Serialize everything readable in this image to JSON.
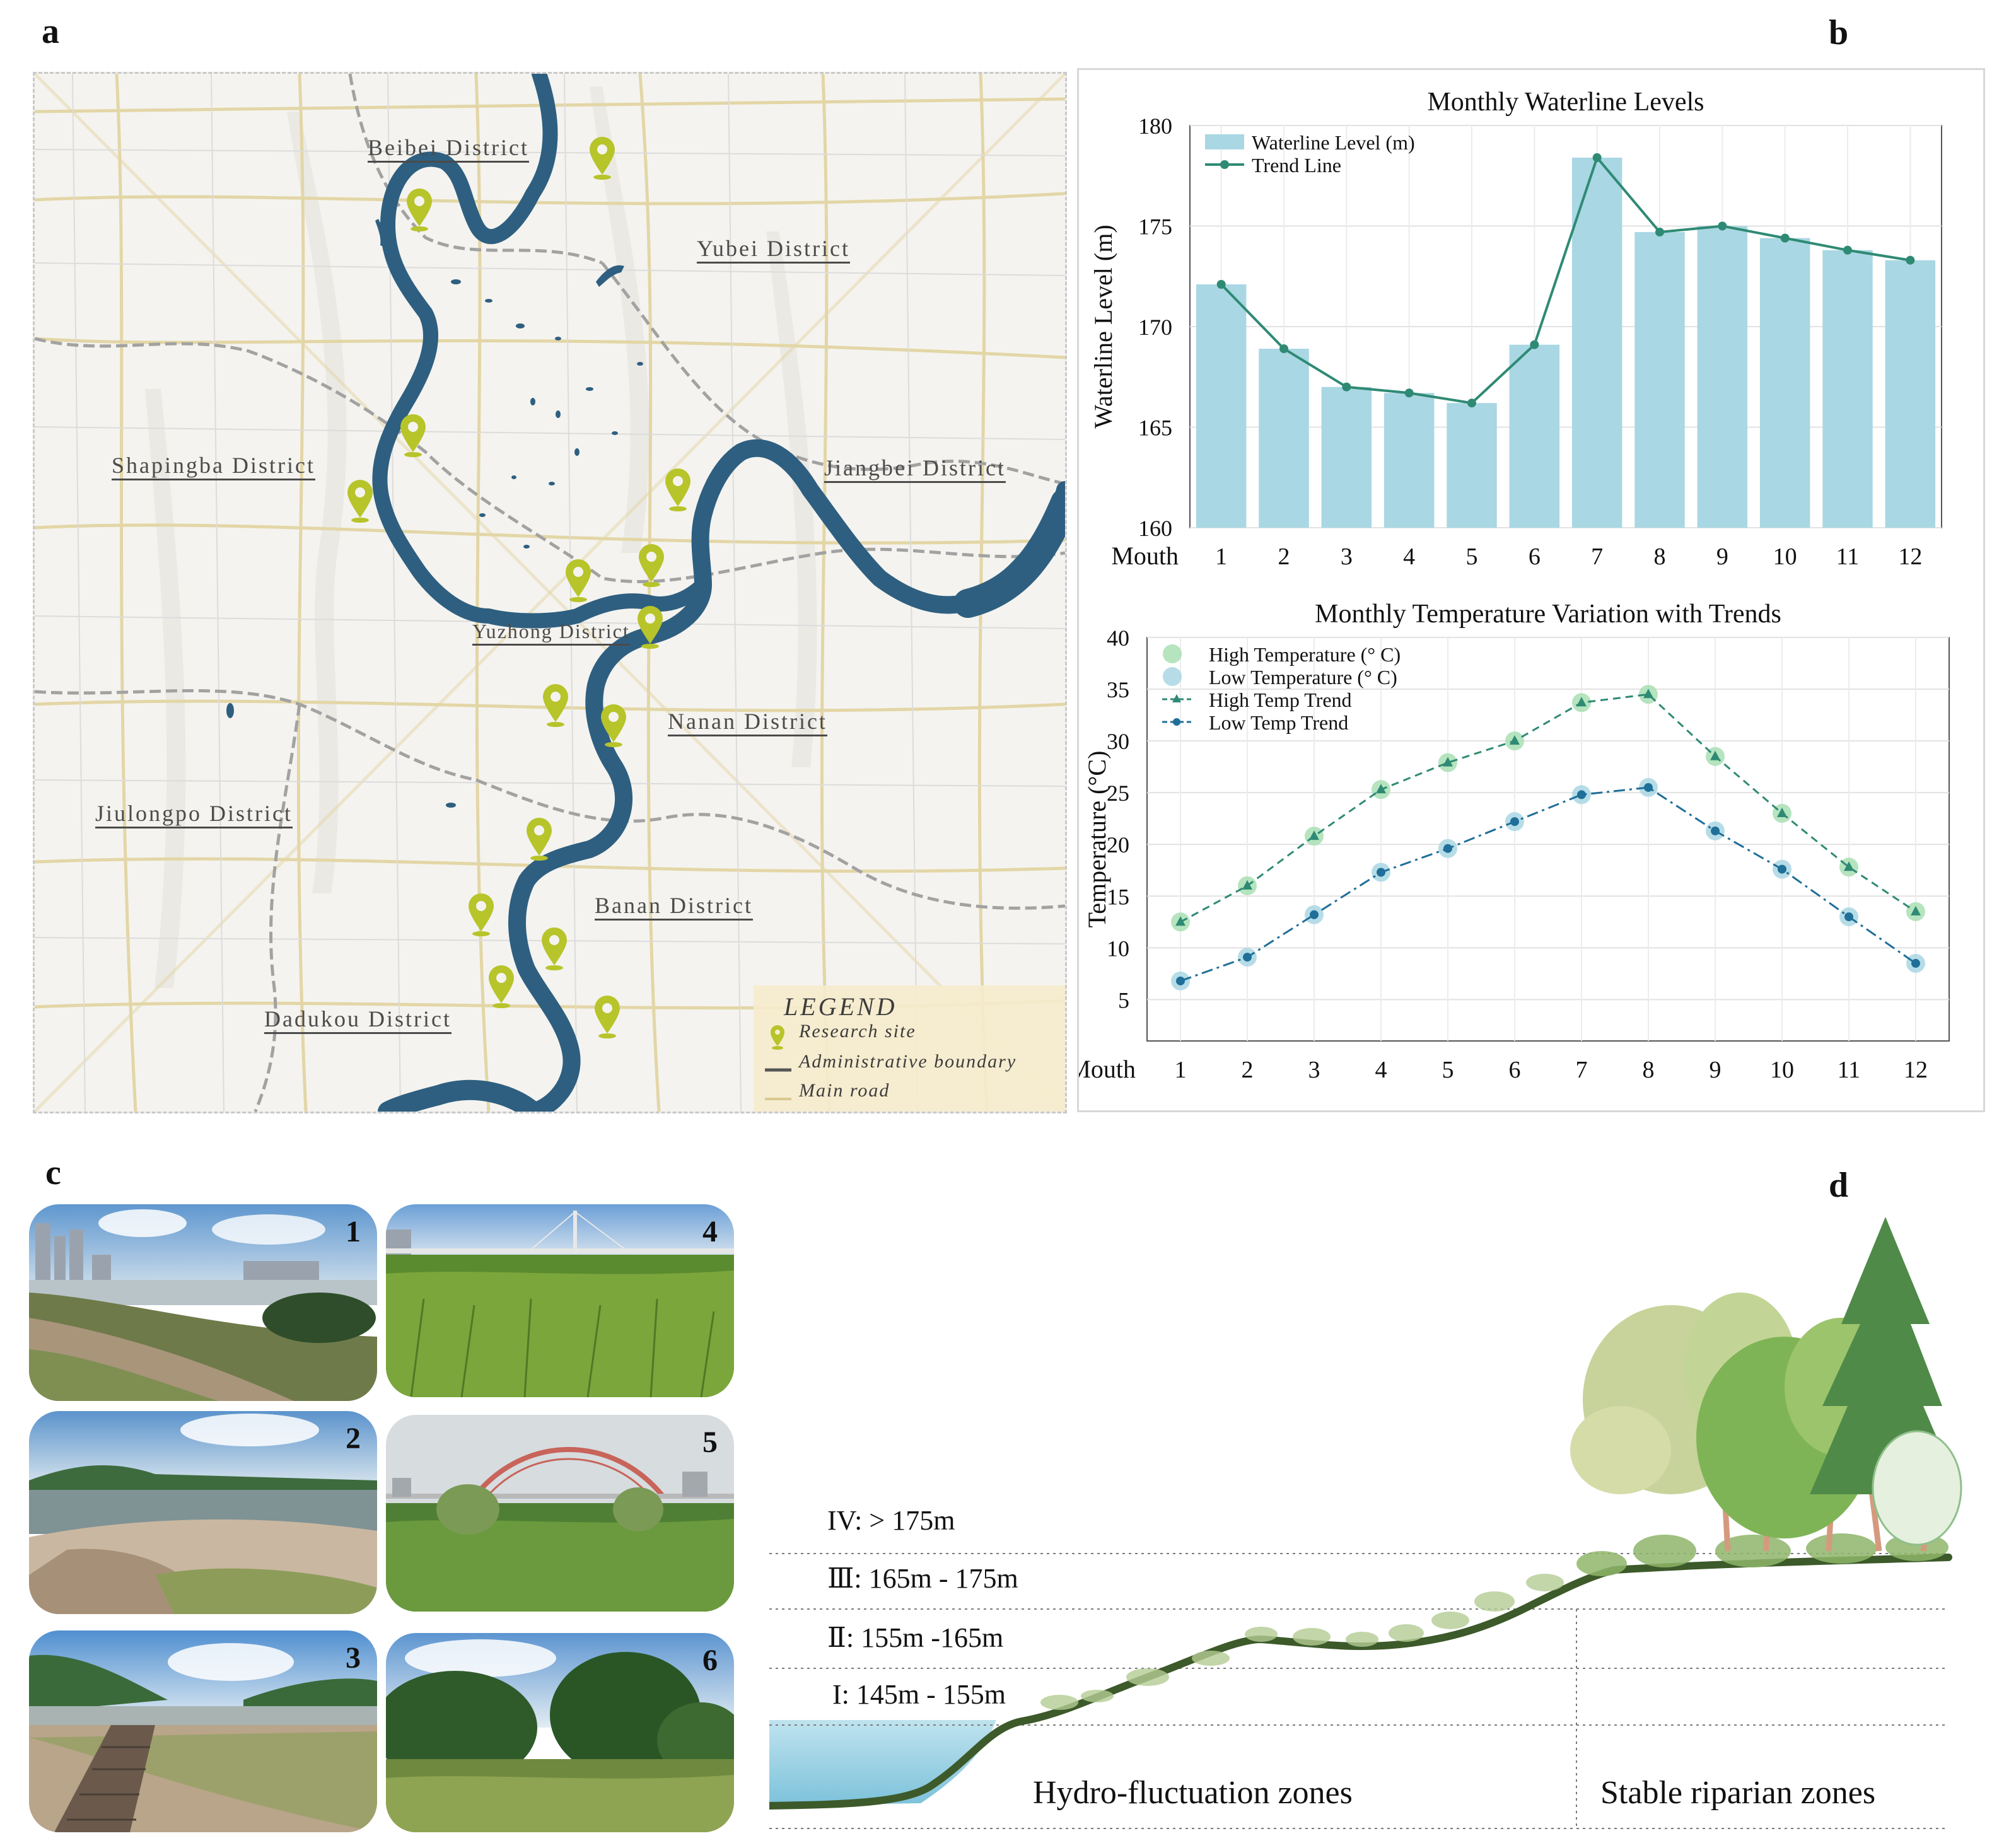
{
  "panels": {
    "a": "a",
    "b": "b",
    "c": "c",
    "d": "d"
  },
  "map": {
    "districts": [
      {
        "id": "beibei",
        "label": "Beibei District"
      },
      {
        "id": "yubei",
        "label": "Yubei District"
      },
      {
        "id": "shapingba",
        "label": "Shapingba District"
      },
      {
        "id": "jiangbei",
        "label": "Jiangbei District"
      },
      {
        "id": "yuzhong",
        "label": "Yuzhong District"
      },
      {
        "id": "nanan",
        "label": "Nanan District"
      },
      {
        "id": "jiulongpo",
        "label": "Jiulongpo District"
      },
      {
        "id": "banan",
        "label": "Banan District"
      },
      {
        "id": "dadukou",
        "label": "Dadukou District"
      }
    ],
    "legend": {
      "title": "LEGEND",
      "items": [
        "Research site",
        "Administrative boundary",
        "Main road"
      ]
    },
    "colors": {
      "river": "#2e5f80",
      "marker": "#b7c42a",
      "boundary": "#9a9a9a",
      "road": "#e6d9a8"
    }
  },
  "chart_data": [
    {
      "type": "bar",
      "title": "Monthly Waterline Levels",
      "xlabel": "Mouth",
      "ylabel": "Waterline Level  (m)",
      "categories": [
        "1",
        "2",
        "3",
        "4",
        "5",
        "6",
        "7",
        "8",
        "9",
        "10",
        "11",
        "12"
      ],
      "ylim": [
        160,
        180
      ],
      "yticks": [
        160,
        165,
        170,
        175,
        180
      ],
      "series": [
        {
          "name": "Waterline Level (m)",
          "kind": "bar",
          "color": "#a9d7e3",
          "values": [
            172.1,
            168.9,
            167.0,
            166.7,
            166.2,
            169.1,
            178.4,
            174.7,
            175.0,
            174.4,
            173.8,
            173.3
          ]
        },
        {
          "name": "Trend Line",
          "kind": "line",
          "color": "#2f8a74",
          "values": [
            172.1,
            168.9,
            167.0,
            166.7,
            166.2,
            169.1,
            178.4,
            174.7,
            175.0,
            174.4,
            173.8,
            173.3
          ]
        }
      ],
      "legend_position": "top-left",
      "grid": true
    },
    {
      "type": "line",
      "title": "Monthly Temperature Variation with Trends",
      "xlabel": "Mouth",
      "ylabel": "Temperature (°C)",
      "categories": [
        "1",
        "2",
        "3",
        "4",
        "5",
        "6",
        "7",
        "8",
        "9",
        "10",
        "11",
        "12"
      ],
      "ylim": [
        1,
        40
      ],
      "yticks": [
        5,
        10,
        15,
        20,
        25,
        30,
        35,
        40
      ],
      "series": [
        {
          "name": "High Temperature (°  C)",
          "kind": "scatter",
          "color": "#a8dfb4",
          "values": [
            12.5,
            16.0,
            20.8,
            25.3,
            27.9,
            30.0,
            33.7,
            34.5,
            28.5,
            23.0,
            17.8,
            13.5
          ]
        },
        {
          "name": "Low Temperature (°  C)",
          "kind": "scatter",
          "color": "#a9d7e3",
          "values": [
            6.8,
            9.1,
            13.2,
            17.3,
            19.6,
            22.2,
            24.8,
            25.5,
            21.3,
            17.6,
            13.0,
            8.5
          ]
        },
        {
          "name": "High Temp Trend",
          "kind": "dashed-line",
          "marker": "triangle",
          "color": "#2f8a74",
          "values": [
            12.5,
            16.0,
            20.8,
            25.3,
            27.9,
            30.0,
            33.7,
            34.5,
            28.5,
            23.0,
            17.8,
            13.5
          ]
        },
        {
          "name": "Low Temp Trend",
          "kind": "dashdot-line",
          "marker": "circle",
          "color": "#1f6f99",
          "values": [
            6.8,
            9.1,
            13.2,
            17.3,
            19.6,
            22.2,
            24.8,
            25.5,
            21.3,
            17.6,
            13.0,
            8.5
          ]
        }
      ],
      "legend_position": "top-left",
      "grid": true
    }
  ],
  "photos": [
    {
      "num": "1",
      "scene": "riverbank-city"
    },
    {
      "num": "2",
      "scene": "rocky-shore"
    },
    {
      "num": "3",
      "scene": "boardwalk-hills"
    },
    {
      "num": "4",
      "scene": "reed-field-bridge"
    },
    {
      "num": "5",
      "scene": "grassland-arch-bridge"
    },
    {
      "num": "6",
      "scene": "shrubs"
    }
  ],
  "profile": {
    "zones": [
      "IV:  > 175m",
      "Ⅲ:  165m - 175m",
      "Ⅱ:  155m  -165m",
      "I:  145m - 155m"
    ],
    "labels": {
      "left": "Hydro-fluctuation zones",
      "right": "Stable riparian zones"
    }
  }
}
